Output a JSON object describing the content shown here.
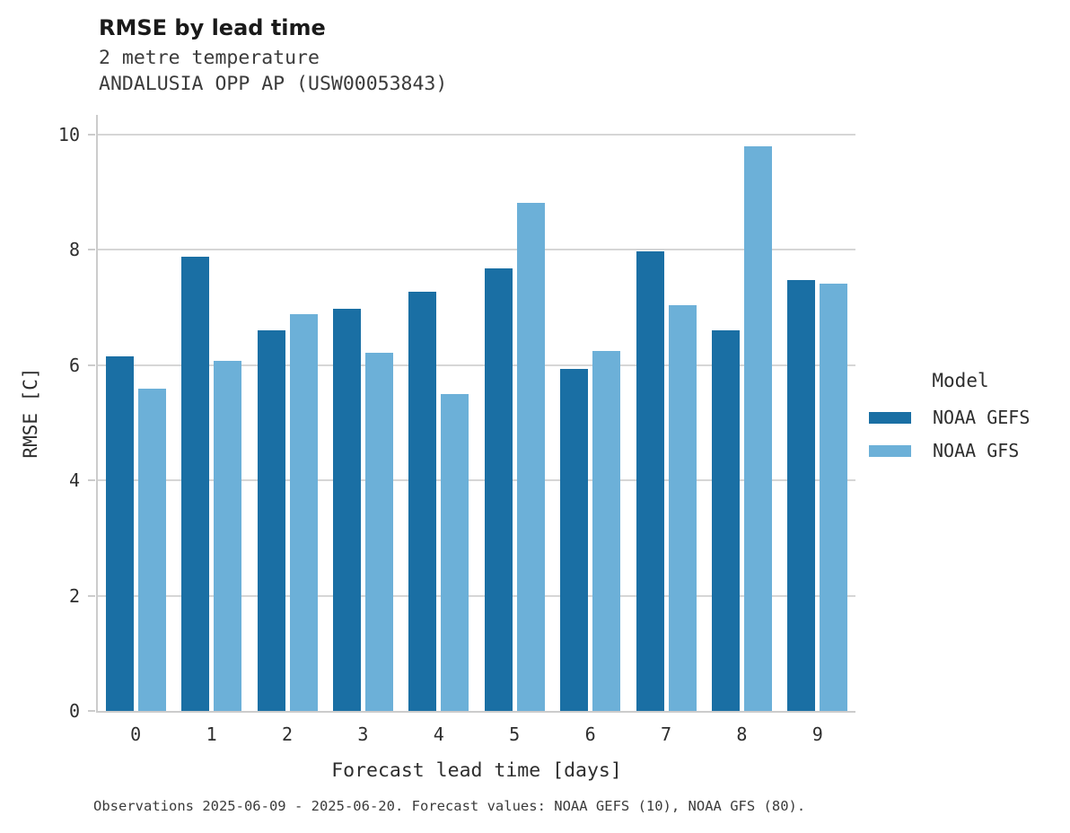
{
  "header": {
    "title": "RMSE by lead time",
    "subtitle_line1": "2 metre temperature",
    "subtitle_line2": "ANDALUSIA OPP AP (USW00053843)"
  },
  "chart_data": {
    "type": "bar",
    "title": "RMSE by lead time",
    "subtitle": "2 metre temperature — ANDALUSIA OPP AP (USW00053843)",
    "categories": [
      "0",
      "1",
      "2",
      "3",
      "4",
      "5",
      "6",
      "7",
      "8",
      "9"
    ],
    "series": [
      {
        "name": "NOAA GEFS",
        "color": "#1a6fa4",
        "values": [
          6.15,
          7.88,
          6.6,
          6.97,
          7.28,
          7.67,
          5.93,
          7.97,
          6.61,
          7.47
        ]
      },
      {
        "name": "NOAA GFS",
        "color": "#6cb0d8",
        "values": [
          5.59,
          6.08,
          6.88,
          6.22,
          5.49,
          8.82,
          6.25,
          7.04,
          9.8,
          7.41
        ]
      }
    ],
    "xlabel": "Forecast lead time [days]",
    "ylabel": "RMSE [C]",
    "ylim": [
      0,
      10.34
    ],
    "yticks": [
      0,
      2,
      4,
      6,
      8,
      10
    ],
    "grid": "horizontal",
    "legend_position": "right"
  },
  "legend": {
    "title": "Model",
    "items": [
      {
        "label": "NOAA GEFS",
        "color": "#1a6fa4"
      },
      {
        "label": "NOAA GFS",
        "color": "#6cb0d8"
      }
    ]
  },
  "caption": {
    "text": "Observations 2025-06-09 - 2025-06-20. Forecast values: NOAA GEFS (10), NOAA GFS (80)."
  },
  "colors": {
    "gefs": "#1a6fa4",
    "gfs": "#6cb0d8",
    "grid": "#d6d6d6",
    "spine": "#cccccc",
    "text": "#2e2e2e"
  }
}
